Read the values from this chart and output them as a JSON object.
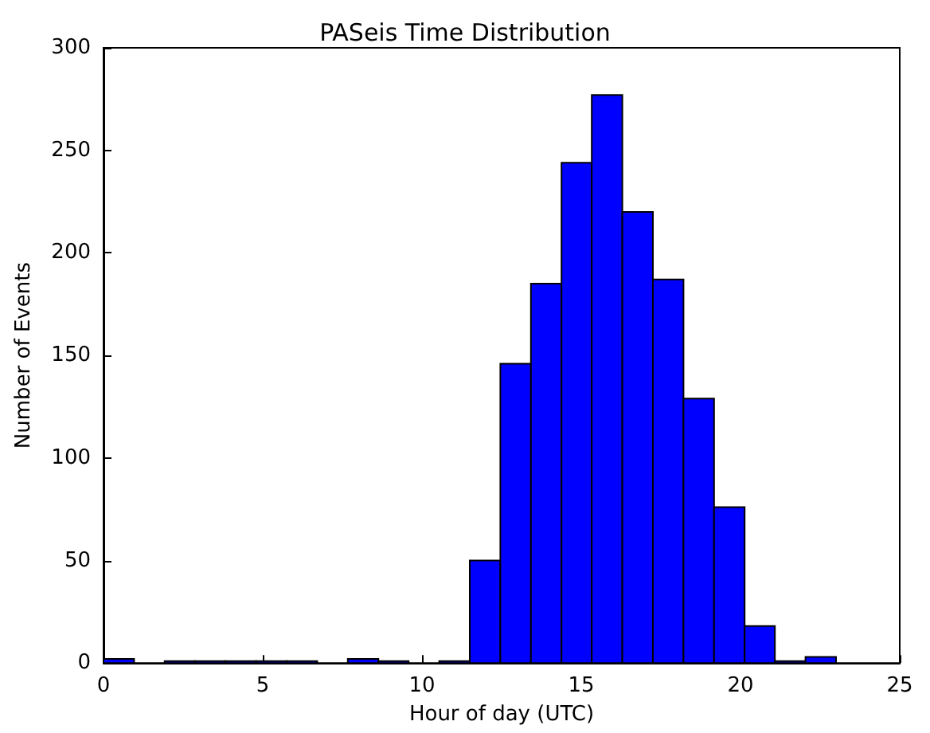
{
  "chart_data": {
    "type": "histogram",
    "title": "PASeis Time Distribution",
    "xlabel": "Hour of day (UTC)",
    "ylabel": "Number of Events",
    "bins": [
      0,
      0.96,
      1.92,
      2.88,
      3.83,
      4.79,
      5.75,
      6.71,
      7.67,
      8.63,
      9.58,
      10.54,
      11.5,
      12.46,
      13.42,
      14.38,
      15.33,
      16.29,
      17.25,
      18.21,
      19.17,
      20.13,
      21.08,
      22.04,
      23
    ],
    "values": [
      2,
      0,
      1,
      1,
      1,
      1,
      1,
      0,
      2,
      1,
      0,
      1,
      50,
      146,
      185,
      244,
      277,
      220,
      187,
      129,
      76,
      18,
      1,
      3
    ],
    "color": "#0000ff",
    "xlim": [
      0,
      25
    ],
    "xticks": [
      0,
      5,
      10,
      15,
      20,
      25
    ],
    "ylim": [
      0,
      300
    ],
    "yticks": [
      0,
      50,
      100,
      150,
      200,
      250,
      300
    ],
    "grid": false
  }
}
